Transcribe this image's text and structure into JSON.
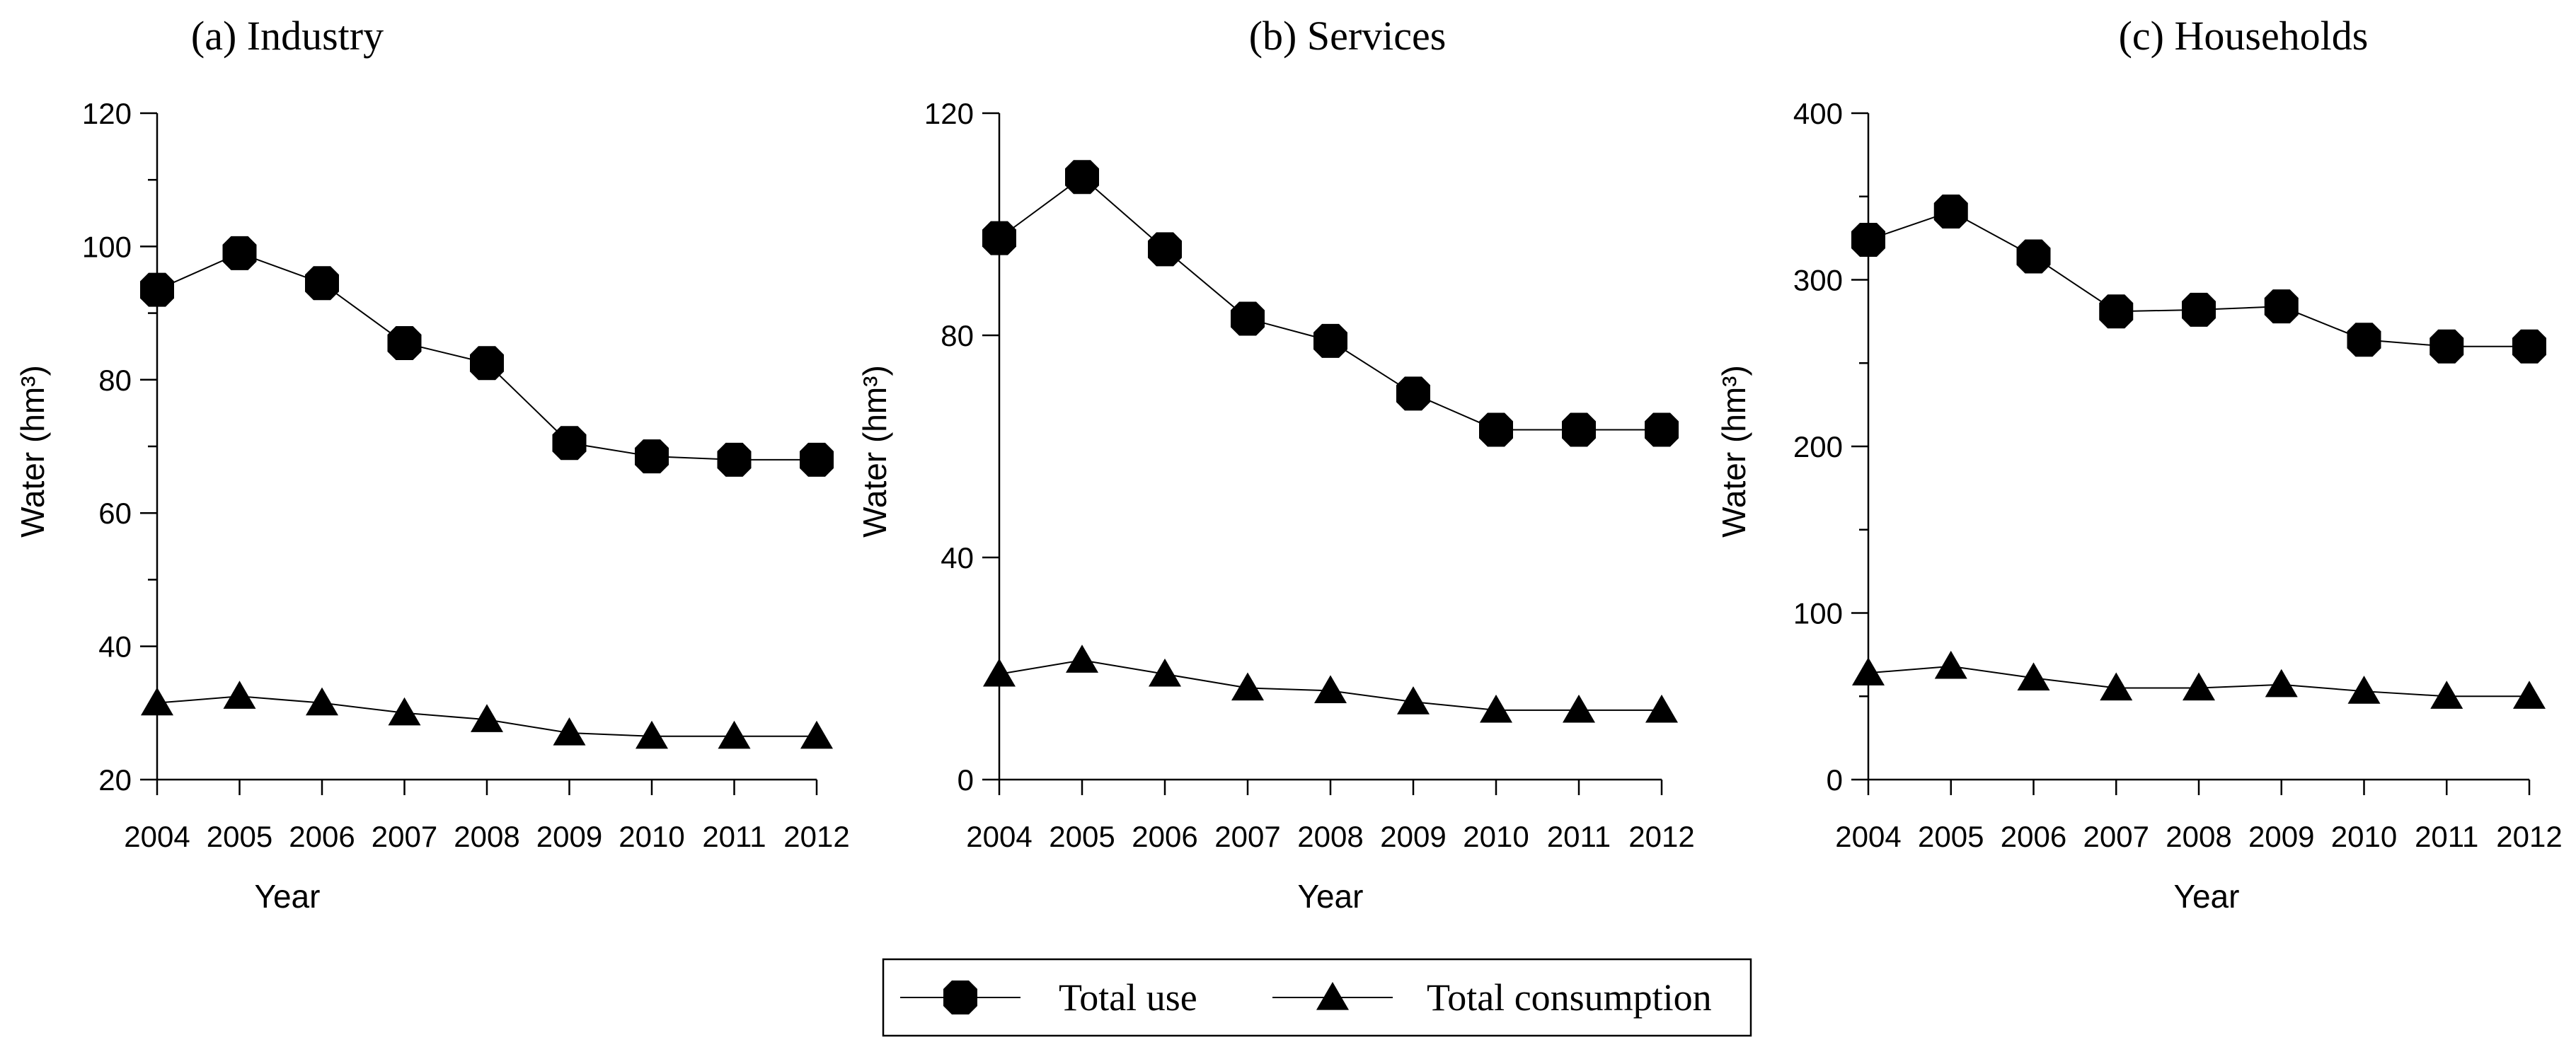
{
  "chart_data": [
    {
      "type": "line",
      "title": "(a) Industry",
      "xlabel": "Year",
      "ylabel": "Water (hm³)",
      "categories": [
        "2004",
        "2005",
        "2006",
        "2007",
        "2008",
        "2009",
        "2010",
        "2011",
        "2012"
      ],
      "ylim": [
        20,
        120
      ],
      "yticks": [
        20,
        40,
        60,
        80,
        100,
        120
      ],
      "series": [
        {
          "name": "Total use",
          "marker": "circle",
          "values": [
            93.5,
            99,
            94.5,
            85.5,
            82.5,
            70.5,
            68.5,
            68,
            68
          ]
        },
        {
          "name": "Total consumption",
          "marker": "triangle",
          "values": [
            31.5,
            32.5,
            31.5,
            30,
            29,
            27,
            26.5,
            26.5,
            26.5
          ]
        }
      ]
    },
    {
      "type": "line",
      "title": "(b) Services",
      "xlabel": "Year",
      "ylabel": "Water (hm³)",
      "categories": [
        "2004",
        "2005",
        "2006",
        "2007",
        "2008",
        "2009",
        "2010",
        "2011",
        "2012"
      ],
      "ylim": [
        0,
        120
      ],
      "yticks": [
        0,
        40,
        80,
        120
      ],
      "series": [
        {
          "name": "Total use",
          "marker": "circle",
          "values": [
            97.5,
            108.5,
            95.5,
            83,
            79,
            69.5,
            63,
            63,
            63
          ]
        },
        {
          "name": "Total consumption",
          "marker": "triangle",
          "values": [
            19,
            21.5,
            19,
            16.5,
            16,
            14,
            12.5,
            12.5,
            12.5
          ]
        }
      ]
    },
    {
      "type": "line",
      "title": "(c) Households",
      "xlabel": "Year",
      "ylabel": "Water (hm³)",
      "categories": [
        "2004",
        "2005",
        "2006",
        "2007",
        "2008",
        "2009",
        "2010",
        "2011",
        "2012"
      ],
      "ylim": [
        0,
        400
      ],
      "yticks": [
        0,
        100,
        200,
        300,
        400
      ],
      "series": [
        {
          "name": "Total use",
          "marker": "circle",
          "values": [
            324,
            341,
            314,
            281,
            282,
            284,
            264,
            260,
            260
          ]
        },
        {
          "name": "Total consumption",
          "marker": "triangle",
          "values": [
            64,
            68,
            61,
            55,
            55,
            57,
            53,
            50,
            50
          ]
        }
      ]
    }
  ],
  "legend": {
    "position": "bottom-center",
    "items": [
      {
        "label": "Total use",
        "marker": "circle"
      },
      {
        "label": "Total consumption",
        "marker": "triangle"
      }
    ]
  }
}
